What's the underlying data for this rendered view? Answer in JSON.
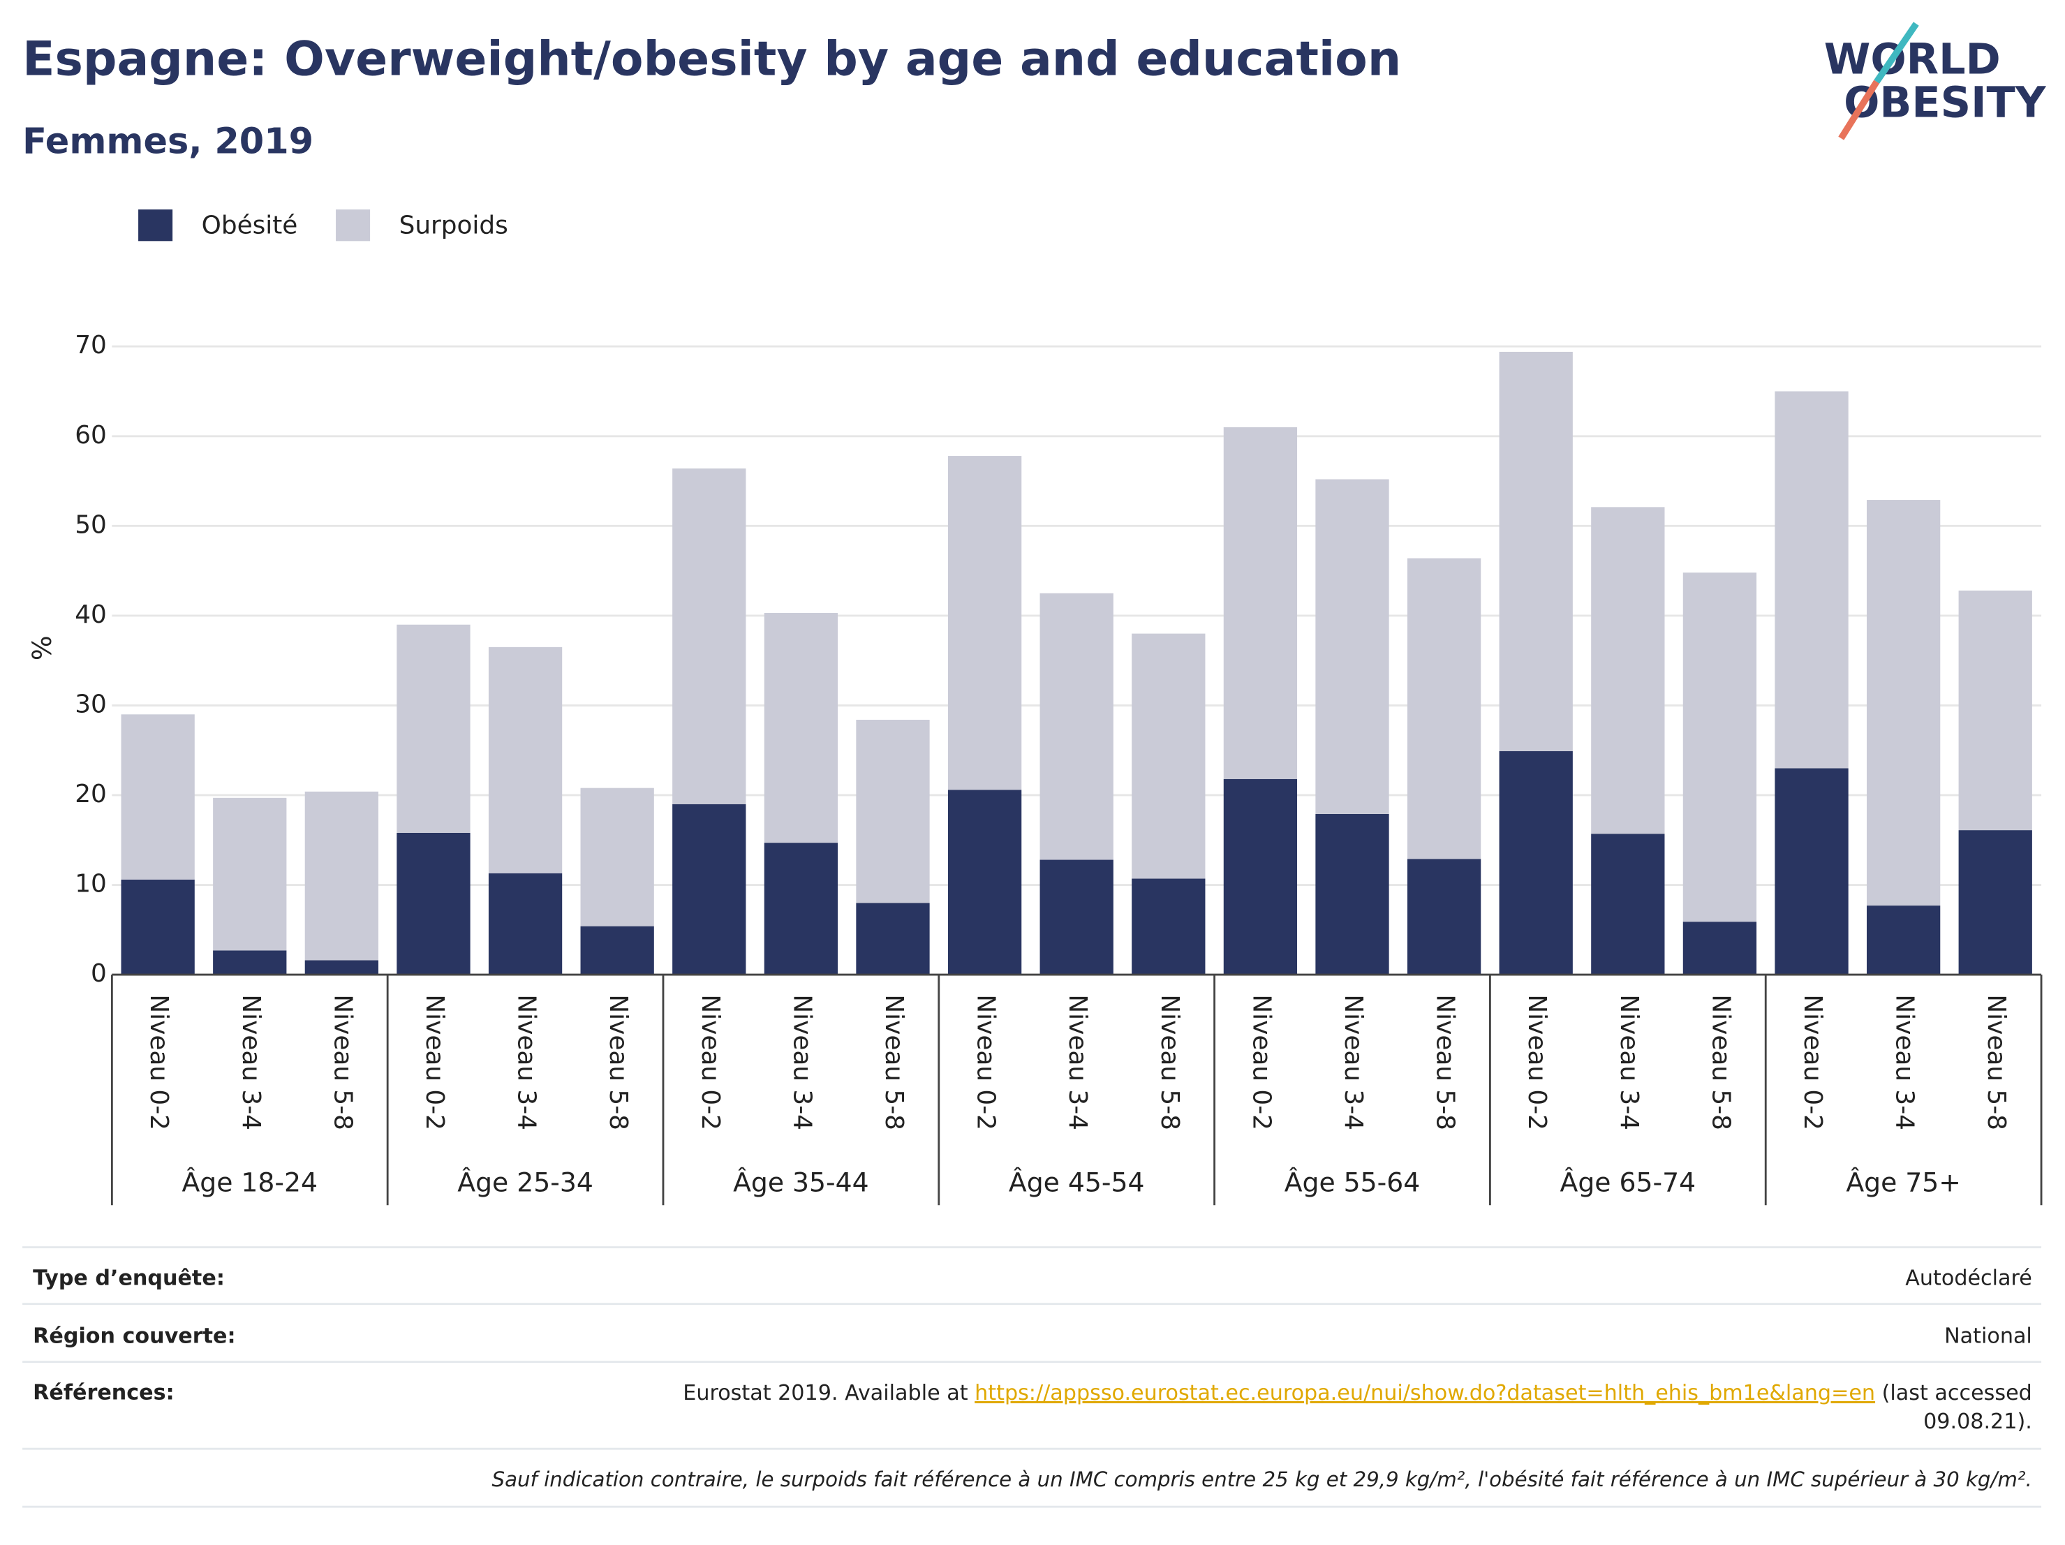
{
  "chart_data": {
    "type": "stacked_bar",
    "title": "Espagne: Overweight/obesity by age and education",
    "subtitle": "Femmes, 2019",
    "logo": [
      "WORLD",
      "OBESITY"
    ],
    "ylabel": "%",
    "categories": [
      "Niveau 0-2",
      "Niveau 3-4",
      "Niveau 5-8",
      "Niveau 0-2",
      "Niveau 3-4",
      "Niveau 5-8",
      "Niveau 0-2",
      "Niveau 3-4",
      "Niveau 5-8",
      "Niveau 0-2",
      "Niveau 3-4",
      "Niveau 5-8",
      "Niveau 0-2",
      "Niveau 3-4",
      "Niveau 5-8",
      "Niveau 0-2",
      "Niveau 3-4",
      "Niveau 5-8",
      "Niveau 0-2",
      "Niveau 3-4",
      "Niveau 5-8"
    ],
    "groups": [
      "Âge 18-24",
      "Âge 25-34",
      "Âge 35-44",
      "Âge 45-54",
      "Âge 55-64",
      "Âge 65-74",
      "Âge 75+"
    ],
    "series": [
      {
        "name": "Obésité",
        "color": "#293561",
        "values": [
          10.6,
          2.7,
          1.6,
          15.8,
          11.3,
          5.4,
          19,
          14.7,
          8,
          20.6,
          12.8,
          10.7,
          21.8,
          17.9,
          12.9,
          24.9,
          15.7,
          5.9,
          23,
          7.7,
          16.1
        ]
      },
      {
        "name": "Surpoids",
        "color": "#cacbd7",
        "values": [
          18.4,
          17.0,
          18.8,
          23.2,
          25.2,
          15.4,
          37.4,
          25.6,
          20.4,
          37.2,
          29.7,
          27.3,
          39.2,
          37.3,
          33.5,
          44.5,
          36.4,
          38.9,
          42,
          45.2,
          26.7
        ]
      }
    ],
    "ylim": [
      0,
      70
    ],
    "yticks": [
      0,
      10,
      20,
      30,
      40,
      50,
      60,
      70
    ],
    "grid": true,
    "legend": "top-left",
    "footer": {
      "rows": [
        {
          "label": "Type d’enquête:",
          "value": "Autodéclaré"
        },
        {
          "label": "Région couverte:",
          "value": "National"
        }
      ],
      "references": {
        "label": "Références:",
        "text": "Eurostat 2019. Available at ",
        "link": "https://appsso.eurostat.ec.europa.eu/nui/show.do?dataset=hlth_ehis_bm1e&lang=en",
        "after": " (last accessed",
        "line2": "09.08.21)."
      },
      "note": "Sauf indication contraire, le surpoids fait référence à un IMC compris entre 25 kg et 29,9 kg/m², l'obésité fait référence à un IMC supérieur à 30 kg/m²."
    }
  }
}
